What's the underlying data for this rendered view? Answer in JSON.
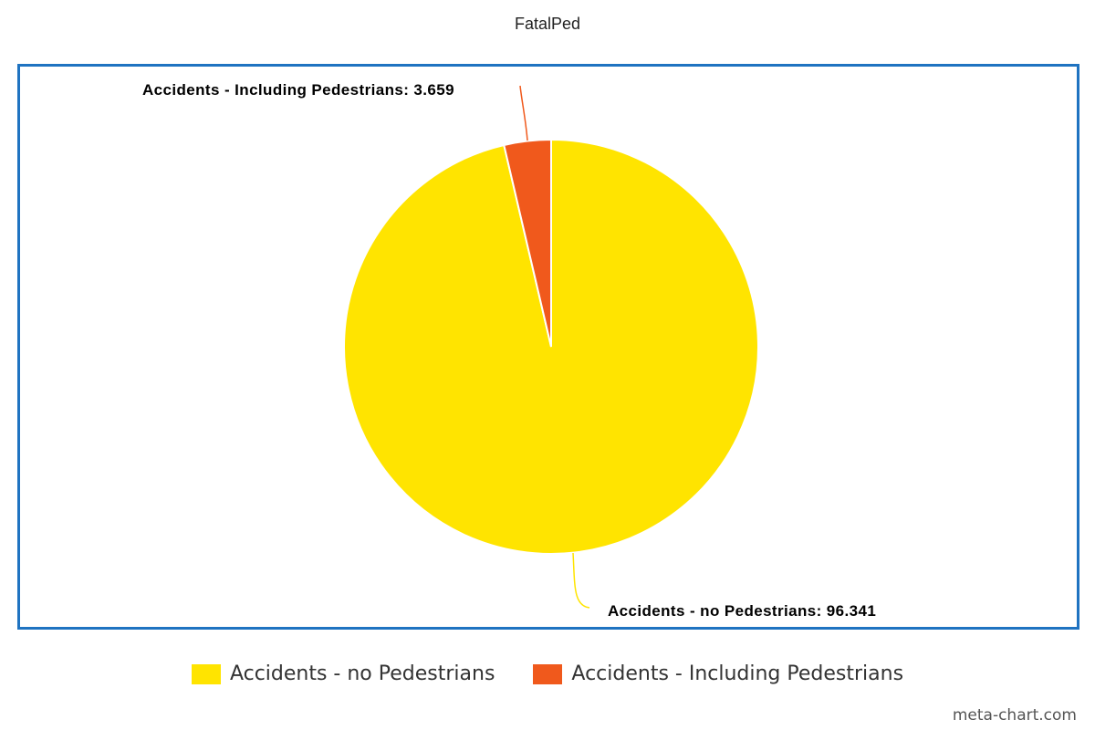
{
  "chart_data": {
    "type": "pie",
    "title": "FatalPed",
    "slices": [
      {
        "name": "Accidents - no Pedestrians",
        "value": 96.341,
        "color": "#ffe400",
        "label": "Accidents - no Pedestrians: 96.341"
      },
      {
        "name": "Accidents - Including Pedestrians",
        "value": 3.659,
        "color": "#f0591c",
        "label": "Accidents - Including Pedestrians: 3.659"
      }
    ],
    "legend_placement": "bottom",
    "frame_color": "#1f73c1"
  },
  "legend": {
    "items": [
      {
        "label": "Accidents - no Pedestrians",
        "color": "#ffe400"
      },
      {
        "label": "Accidents - Including Pedestrians",
        "color": "#f0591c"
      }
    ]
  },
  "credit": "meta-chart.com"
}
